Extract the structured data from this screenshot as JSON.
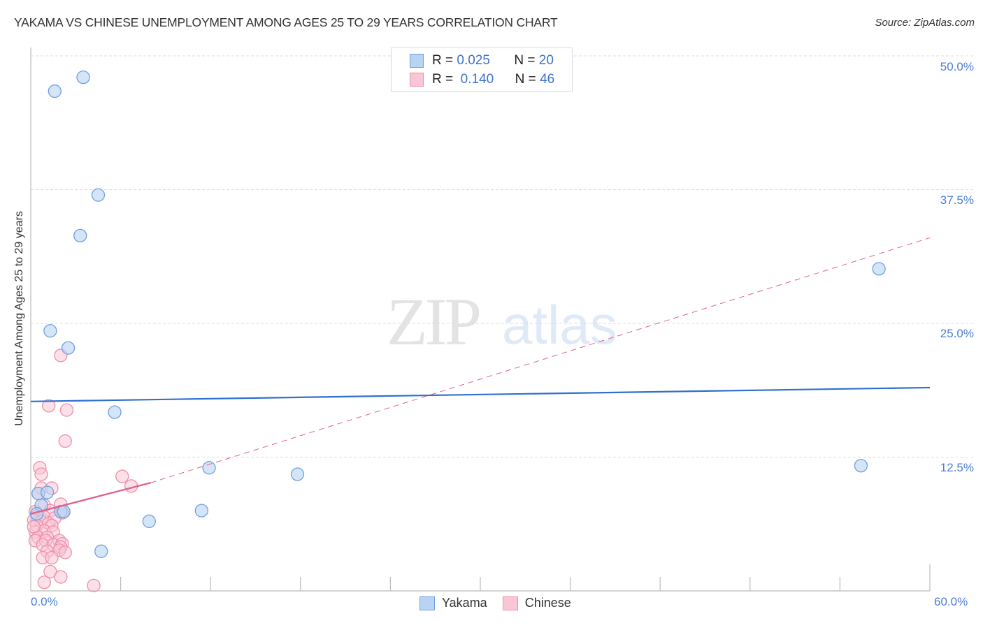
{
  "header": {
    "title": "YAKAMA VS CHINESE UNEMPLOYMENT AMONG AGES 25 TO 29 YEARS CORRELATION CHART",
    "source": "Source: ZipAtlas.com"
  },
  "watermark": {
    "zip": "ZIP",
    "atlas": "atlas"
  },
  "axes": {
    "ylabel": "Unemployment Among Ages 25 to 29 years",
    "yticks": [
      "50.0%",
      "37.5%",
      "25.0%",
      "12.5%"
    ],
    "xticks": [
      "0.0%",
      "60.0%"
    ]
  },
  "legend": {
    "rows": [
      {
        "r_label": "R =",
        "r_value": "0.025",
        "n_label": "N =",
        "n_value": "20"
      },
      {
        "r_label": "R =",
        "r_value": "0.140",
        "n_label": "N =",
        "n_value": "46"
      }
    ],
    "series": [
      "Yakama",
      "Chinese"
    ]
  },
  "colors": {
    "yakama_fill": "#b9d3f3",
    "yakama_stroke": "#6f9fe0",
    "yakama_line": "#2f6fcf",
    "chinese_fill": "#f9c6d5",
    "chinese_stroke": "#eb8fab",
    "chinese_line": "#e2608a",
    "value_text": "#3d72c9"
  },
  "chart_data": {
    "type": "scatter",
    "title": "YAKAMA VS CHINESE UNEMPLOYMENT AMONG AGES 25 TO 29 YEARS CORRELATION CHART",
    "xlabel": "",
    "ylabel": "Unemployment Among Ages 25 to 29 years",
    "xlim": [
      0,
      60
    ],
    "ylim": [
      0,
      50
    ],
    "yticks": [
      12.5,
      25.0,
      37.5,
      50.0
    ],
    "grid": "horizontal dashed",
    "legend_position": "top-center and bottom",
    "series": [
      {
        "name": "Yakama",
        "R": 0.025,
        "N": 20,
        "trend": {
          "x": [
            0,
            60
          ],
          "y": [
            17.7,
            19.0
          ]
        },
        "points": [
          [
            1.6,
            46.7
          ],
          [
            3.5,
            48.0
          ],
          [
            4.5,
            37.0
          ],
          [
            3.3,
            33.2
          ],
          [
            1.3,
            24.3
          ],
          [
            2.5,
            22.7
          ],
          [
            5.6,
            16.7
          ],
          [
            11.9,
            11.5
          ],
          [
            17.8,
            10.9
          ],
          [
            11.4,
            7.5
          ],
          [
            7.9,
            6.5
          ],
          [
            4.7,
            3.7
          ],
          [
            56.6,
            30.1
          ],
          [
            55.4,
            11.7
          ],
          [
            0.5,
            9.1
          ],
          [
            1.1,
            9.2
          ],
          [
            0.7,
            8.0
          ],
          [
            2.0,
            7.4
          ],
          [
            2.2,
            7.4
          ],
          [
            0.4,
            7.2
          ]
        ]
      },
      {
        "name": "Chinese",
        "R": 0.14,
        "N": 46,
        "trend": {
          "x": [
            0,
            8,
            60
          ],
          "y": [
            7.2,
            10.1,
            33.0
          ],
          "solid_until_x": 8
        },
        "points": [
          [
            2.0,
            22.0
          ],
          [
            1.2,
            17.3
          ],
          [
            2.4,
            16.9
          ],
          [
            2.3,
            14.0
          ],
          [
            0.6,
            11.5
          ],
          [
            0.7,
            10.9
          ],
          [
            6.1,
            10.7
          ],
          [
            6.7,
            9.8
          ],
          [
            0.7,
            9.6
          ],
          [
            1.4,
            9.6
          ],
          [
            0.5,
            9.1
          ],
          [
            0.9,
            8.0
          ],
          [
            2.0,
            8.1
          ],
          [
            0.3,
            7.4
          ],
          [
            1.3,
            7.5
          ],
          [
            2.1,
            7.3
          ],
          [
            0.4,
            7.0
          ],
          [
            0.9,
            6.9
          ],
          [
            0.2,
            6.6
          ],
          [
            1.6,
            6.8
          ],
          [
            0.7,
            6.5
          ],
          [
            1.2,
            6.3
          ],
          [
            0.4,
            6.1
          ],
          [
            1.4,
            6.1
          ],
          [
            0.3,
            5.5
          ],
          [
            0.9,
            5.6
          ],
          [
            1.5,
            5.5
          ],
          [
            0.5,
            5.0
          ],
          [
            1.1,
            5.0
          ],
          [
            0.3,
            4.7
          ],
          [
            1.0,
            4.7
          ],
          [
            1.9,
            4.7
          ],
          [
            0.8,
            4.3
          ],
          [
            1.5,
            4.3
          ],
          [
            2.1,
            4.4
          ],
          [
            2.0,
            4.1
          ],
          [
            1.1,
            3.7
          ],
          [
            1.9,
            3.8
          ],
          [
            2.3,
            3.6
          ],
          [
            0.8,
            3.1
          ],
          [
            1.4,
            3.1
          ],
          [
            1.3,
            1.8
          ],
          [
            2.0,
            1.3
          ],
          [
            0.9,
            0.8
          ],
          [
            4.2,
            0.5
          ],
          [
            0.2,
            6.0
          ]
        ]
      }
    ]
  }
}
